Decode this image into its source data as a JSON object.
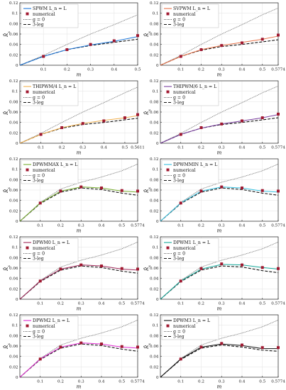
{
  "chart_data": [
    {
      "type": "line",
      "series_label": "SPWM L_n = L",
      "colors": {
        "main": "#1f77d8"
      },
      "x_ticks": [
        "0.1",
        "0.2",
        "0.3",
        "0.4",
        "0.5"
      ],
      "y_ticks": [
        "0",
        "0.02",
        "0.04",
        "0.06",
        "0.08",
        "0.1",
        "0.12"
      ],
      "xlim": [
        0,
        0.5
      ],
      "ylim": [
        0,
        0.12
      ],
      "main": {
        "x": [
          0,
          0.1,
          0.2,
          0.3,
          0.4,
          0.5
        ],
        "y": [
          0,
          0.017,
          0.03,
          0.039,
          0.046,
          0.055
        ]
      },
      "g0": {
        "x": [
          0,
          0.1,
          0.2,
          0.3,
          0.4,
          0.5
        ],
        "y": [
          0,
          0.019,
          0.04,
          0.06,
          0.078,
          0.097
        ]
      },
      "leg3": {
        "x": [
          0,
          0.1,
          0.2,
          0.3,
          0.4,
          0.5
        ],
        "y": [
          0,
          0.017,
          0.03,
          0.038,
          0.044,
          0.05
        ]
      },
      "numerical": {
        "x": [
          0.1,
          0.2,
          0.3,
          0.4,
          0.5
        ],
        "y": [
          0.017,
          0.03,
          0.04,
          0.047,
          0.057
        ]
      }
    },
    {
      "type": "line",
      "series_label": "SVPWM L_n = L",
      "colors": {
        "main": "#e8734a"
      },
      "x_ticks": [
        "0.1",
        "0.2",
        "0.3",
        "0.4",
        "0.5",
        "0.5774"
      ],
      "y_ticks": [
        "0",
        "0.02",
        "0.04",
        "0.06",
        "0.08",
        "0.1",
        "0.12"
      ],
      "xlim": [
        0,
        0.5774
      ],
      "ylim": [
        0,
        0.12
      ],
      "main": {
        "x": [
          0,
          0.1,
          0.2,
          0.3,
          0.4,
          0.5,
          0.5774
        ],
        "y": [
          0,
          0.017,
          0.03,
          0.038,
          0.044,
          0.05,
          0.056
        ]
      },
      "g0": {
        "x": [
          0,
          0.1,
          0.2,
          0.3,
          0.4,
          0.5,
          0.5774
        ],
        "y": [
          0,
          0.019,
          0.04,
          0.06,
          0.078,
          0.097,
          0.11
        ]
      },
      "leg3": {
        "x": [
          0,
          0.1,
          0.2,
          0.3,
          0.4,
          0.5,
          0.5774
        ],
        "y": [
          0,
          0.017,
          0.029,
          0.036,
          0.04,
          0.045,
          0.049
        ]
      },
      "numerical": {
        "x": [
          0.1,
          0.2,
          0.3,
          0.4,
          0.5,
          0.5774
        ],
        "y": [
          0.017,
          0.03,
          0.038,
          0.043,
          0.05,
          0.058
        ]
      }
    },
    {
      "type": "line",
      "series_label": "THIPWM/4 L_n = L",
      "colors": {
        "main": "#f0b050"
      },
      "x_ticks": [
        "0.1",
        "0.2",
        "0.3",
        "0.4",
        "0.5",
        "0.5611"
      ],
      "y_ticks": [
        "0",
        "0.02",
        "0.04",
        "0.06",
        "0.08",
        "0.1",
        "0.12"
      ],
      "xlim": [
        0,
        0.5611
      ],
      "ylim": [
        0,
        0.12
      ],
      "main": {
        "x": [
          0,
          0.1,
          0.2,
          0.3,
          0.4,
          0.5,
          0.5611
        ],
        "y": [
          0,
          0.017,
          0.03,
          0.038,
          0.044,
          0.049,
          0.053
        ]
      },
      "g0": {
        "x": [
          0,
          0.1,
          0.2,
          0.3,
          0.4,
          0.5,
          0.5611
        ],
        "y": [
          0,
          0.019,
          0.04,
          0.06,
          0.078,
          0.097,
          0.108
        ]
      },
      "leg3": {
        "x": [
          0,
          0.1,
          0.2,
          0.3,
          0.4,
          0.5,
          0.5611
        ],
        "y": [
          0,
          0.017,
          0.029,
          0.036,
          0.04,
          0.045,
          0.048
        ]
      },
      "numerical": {
        "x": [
          0.1,
          0.2,
          0.3,
          0.4,
          0.5,
          0.5611
        ],
        "y": [
          0.017,
          0.03,
          0.038,
          0.043,
          0.049,
          0.055
        ]
      }
    },
    {
      "type": "line",
      "series_label": "THIPWM/6 L_n = L",
      "colors": {
        "main": "#7b3fa0"
      },
      "x_ticks": [
        "0.1",
        "0.2",
        "0.3",
        "0.4",
        "0.5",
        "0.5774"
      ],
      "y_ticks": [
        "0",
        "0.02",
        "0.04",
        "0.06",
        "0.08",
        "0.1",
        "0.12"
      ],
      "xlim": [
        0,
        0.5774
      ],
      "ylim": [
        0,
        0.12
      ],
      "main": {
        "x": [
          0,
          0.1,
          0.2,
          0.3,
          0.4,
          0.5,
          0.5774
        ],
        "y": [
          0,
          0.017,
          0.029,
          0.037,
          0.043,
          0.049,
          0.055
        ]
      },
      "g0": {
        "x": [
          0,
          0.1,
          0.2,
          0.3,
          0.4,
          0.5,
          0.5774
        ],
        "y": [
          0,
          0.019,
          0.04,
          0.06,
          0.078,
          0.097,
          0.11
        ]
      },
      "leg3": {
        "x": [
          0,
          0.1,
          0.2,
          0.3,
          0.4,
          0.5,
          0.5774
        ],
        "y": [
          0,
          0.017,
          0.029,
          0.036,
          0.04,
          0.045,
          0.049
        ]
      },
      "numerical": {
        "x": [
          0.1,
          0.2,
          0.3,
          0.4,
          0.5,
          0.5774
        ],
        "y": [
          0.017,
          0.03,
          0.037,
          0.043,
          0.049,
          0.056
        ]
      }
    },
    {
      "type": "line",
      "series_label": "DPWMMAX L_n = L",
      "colors": {
        "main": "#77ac30"
      },
      "x_ticks": [
        "0.1",
        "0.2",
        "0.3",
        "0.4",
        "0.5",
        "0.5774"
      ],
      "y_ticks": [
        "0",
        "0.02",
        "0.04",
        "0.06",
        "0.08",
        "0.1",
        "0.12"
      ],
      "xlim": [
        0,
        0.5774
      ],
      "ylim": [
        0,
        0.12
      ],
      "main": {
        "x": [
          0,
          0.1,
          0.2,
          0.3,
          0.4,
          0.5,
          0.5774
        ],
        "y": [
          0,
          0.035,
          0.058,
          0.066,
          0.064,
          0.058,
          0.056
        ]
      },
      "g0": {
        "x": [
          0,
          0.1,
          0.2,
          0.3,
          0.4,
          0.5,
          0.5774
        ],
        "y": [
          0,
          0.036,
          0.062,
          0.075,
          0.085,
          0.097,
          0.11
        ]
      },
      "leg3": {
        "x": [
          0,
          0.1,
          0.2,
          0.3,
          0.4,
          0.5,
          0.5774
        ],
        "y": [
          0,
          0.034,
          0.056,
          0.064,
          0.061,
          0.054,
          0.05
        ]
      },
      "numerical": {
        "x": [
          0.1,
          0.2,
          0.3,
          0.4,
          0.5,
          0.5774
        ],
        "y": [
          0.035,
          0.058,
          0.066,
          0.064,
          0.059,
          0.058
        ]
      }
    },
    {
      "type": "line",
      "series_label": "DPWMMIN L_n = L",
      "colors": {
        "main": "#36c0e0"
      },
      "x_ticks": [
        "0.1",
        "0.2",
        "0.3",
        "0.4",
        "0.5",
        "0.5774"
      ],
      "y_ticks": [
        "0",
        "0.02",
        "0.04",
        "0.06",
        "0.08",
        "0.1",
        "0.12"
      ],
      "xlim": [
        0,
        0.5774
      ],
      "ylim": [
        0,
        0.12
      ],
      "main": {
        "x": [
          0,
          0.1,
          0.2,
          0.3,
          0.4,
          0.5,
          0.5774
        ],
        "y": [
          0,
          0.035,
          0.058,
          0.066,
          0.064,
          0.058,
          0.056
        ]
      },
      "g0": {
        "x": [
          0,
          0.1,
          0.2,
          0.3,
          0.4,
          0.5,
          0.5774
        ],
        "y": [
          0,
          0.036,
          0.062,
          0.075,
          0.085,
          0.097,
          0.11
        ]
      },
      "leg3": {
        "x": [
          0,
          0.1,
          0.2,
          0.3,
          0.4,
          0.5,
          0.5774
        ],
        "y": [
          0,
          0.034,
          0.056,
          0.064,
          0.061,
          0.054,
          0.05
        ]
      },
      "numerical": {
        "x": [
          0.1,
          0.2,
          0.3,
          0.4,
          0.5,
          0.5774
        ],
        "y": [
          0.035,
          0.058,
          0.066,
          0.064,
          0.059,
          0.058
        ]
      }
    },
    {
      "type": "line",
      "series_label": "DPWM0 L_n = L",
      "colors": {
        "main": "#a0285a"
      },
      "x_ticks": [
        "0.1",
        "0.2",
        "0.3",
        "0.4",
        "0.5",
        "0.5774"
      ],
      "y_ticks": [
        "0",
        "0.02",
        "0.04",
        "0.06",
        "0.08",
        "0.1",
        "0.12"
      ],
      "xlim": [
        0,
        0.5774
      ],
      "ylim": [
        0,
        0.12
      ],
      "main": {
        "x": [
          0,
          0.1,
          0.2,
          0.3,
          0.4,
          0.5,
          0.5774
        ],
        "y": [
          0,
          0.035,
          0.058,
          0.066,
          0.064,
          0.058,
          0.056
        ]
      },
      "g0": {
        "x": [
          0,
          0.1,
          0.2,
          0.3,
          0.4,
          0.5,
          0.5774
        ],
        "y": [
          0,
          0.036,
          0.062,
          0.075,
          0.085,
          0.097,
          0.11
        ]
      },
      "leg3": {
        "x": [
          0,
          0.1,
          0.2,
          0.3,
          0.4,
          0.5,
          0.5774
        ],
        "y": [
          0,
          0.034,
          0.056,
          0.064,
          0.061,
          0.054,
          0.05
        ]
      },
      "numerical": {
        "x": [
          0.1,
          0.2,
          0.3,
          0.4,
          0.5,
          0.5774
        ],
        "y": [
          0.035,
          0.058,
          0.066,
          0.064,
          0.059,
          0.058
        ]
      }
    },
    {
      "type": "line",
      "series_label": "DPWM1 L_n = L",
      "colors": {
        "main": "#17a89a"
      },
      "x_ticks": [
        "0.1",
        "0.2",
        "0.3",
        "0.4",
        "0.5",
        "0.5774"
      ],
      "y_ticks": [
        "0",
        "0.02",
        "0.04",
        "0.06",
        "0.08",
        "0.1",
        "0.12"
      ],
      "xlim": [
        0,
        0.5774
      ],
      "ylim": [
        0,
        0.12
      ],
      "main": {
        "x": [
          0,
          0.1,
          0.2,
          0.3,
          0.4,
          0.5,
          0.5774
        ],
        "y": [
          0,
          0.035,
          0.058,
          0.067,
          0.066,
          0.061,
          0.058
        ]
      },
      "g0": {
        "x": [
          0,
          0.1,
          0.2,
          0.3,
          0.4,
          0.5,
          0.5774
        ],
        "y": [
          0,
          0.036,
          0.062,
          0.075,
          0.085,
          0.097,
          0.11
        ]
      },
      "leg3": {
        "x": [
          0,
          0.1,
          0.2,
          0.3,
          0.4,
          0.5,
          0.5774
        ],
        "y": [
          0,
          0.034,
          0.056,
          0.064,
          0.062,
          0.055,
          0.051
        ]
      },
      "numerical": {
        "x": [
          0.1,
          0.2,
          0.3,
          0.4,
          0.5,
          0.5774
        ],
        "y": [
          0.035,
          0.059,
          0.068,
          0.066,
          0.061,
          0.059
        ]
      }
    },
    {
      "type": "line",
      "series_label": "DPWM2 L_n = L",
      "colors": {
        "main": "#e02bd0"
      },
      "x_ticks": [
        "0.1",
        "0.2",
        "0.3",
        "0.4",
        "0.5",
        "0.5774"
      ],
      "y_ticks": [
        "0",
        "0.02",
        "0.04",
        "0.06",
        "0.08",
        "0.1",
        "0.12"
      ],
      "xlim": [
        0,
        0.5774
      ],
      "ylim": [
        0,
        0.12
      ],
      "main": {
        "x": [
          0,
          0.1,
          0.2,
          0.3,
          0.4,
          0.5,
          0.5774
        ],
        "y": [
          0,
          0.035,
          0.058,
          0.066,
          0.064,
          0.058,
          0.056
        ]
      },
      "g0": {
        "x": [
          0,
          0.1,
          0.2,
          0.3,
          0.4,
          0.5,
          0.5774
        ],
        "y": [
          0,
          0.036,
          0.062,
          0.075,
          0.085,
          0.097,
          0.11
        ]
      },
      "leg3": {
        "x": [
          0,
          0.1,
          0.2,
          0.3,
          0.4,
          0.5,
          0.5774
        ],
        "y": [
          0,
          0.034,
          0.056,
          0.064,
          0.061,
          0.054,
          0.05
        ]
      },
      "numerical": {
        "x": [
          0.1,
          0.2,
          0.3,
          0.4,
          0.5,
          0.5774
        ],
        "y": [
          0.035,
          0.058,
          0.066,
          0.064,
          0.059,
          0.058
        ]
      }
    },
    {
      "type": "line",
      "series_label": "DPWM3 L_n = L",
      "colors": {
        "main": "#111111"
      },
      "x_ticks": [
        "0.1",
        "0.2",
        "0.3",
        "0.4",
        "0.5",
        "0.5774"
      ],
      "y_ticks": [
        "0",
        "0.02",
        "0.04",
        "0.06",
        "0.08",
        "0.1",
        "0.12"
      ],
      "xlim": [
        0,
        0.5774
      ],
      "ylim": [
        0,
        0.12
      ],
      "main": {
        "x": [
          0,
          0.1,
          0.2,
          0.3,
          0.4,
          0.5,
          0.5774
        ],
        "y": [
          0,
          0.035,
          0.058,
          0.064,
          0.061,
          0.055,
          0.055
        ]
      },
      "g0": {
        "x": [
          0,
          0.1,
          0.2,
          0.3,
          0.4,
          0.5,
          0.5774
        ],
        "y": [
          0,
          0.036,
          0.062,
          0.075,
          0.085,
          0.097,
          0.11
        ]
      },
      "leg3": {
        "x": [
          0,
          0.1,
          0.2,
          0.3,
          0.4,
          0.5,
          0.5774
        ],
        "y": [
          0,
          0.034,
          0.056,
          0.062,
          0.058,
          0.052,
          0.05
        ]
      },
      "numerical": {
        "x": [
          0.1,
          0.2,
          0.3,
          0.4,
          0.5,
          0.5774
        ],
        "y": [
          0.035,
          0.058,
          0.065,
          0.062,
          0.057,
          0.057
        ]
      }
    }
  ],
  "common": {
    "ylabel_base": "R̂",
    "ylabel_sub": "x",
    "xlabel": "m",
    "legend_numerical": "numerical",
    "legend_g0": "g = 0",
    "legend_3leg": "3-leg",
    "colors": {
      "marker": "#a01830",
      "g0": "#666666",
      "leg3": "#111111",
      "axis": "#222222",
      "grid": "#e6e6e6"
    }
  }
}
